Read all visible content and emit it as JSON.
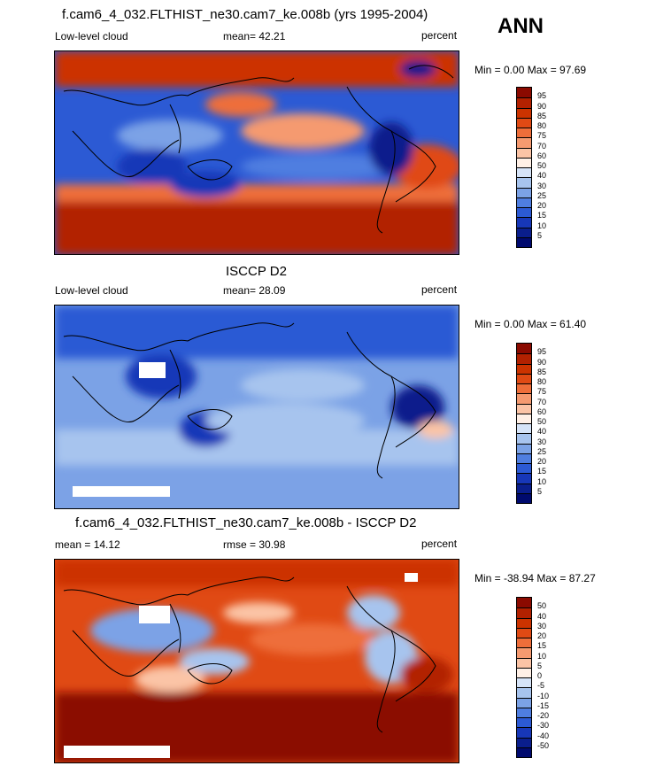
{
  "season": "ANN",
  "panels": [
    {
      "title": "f.cam6_4_032.FLTHIST_ne30.cam7_ke.008b (yrs 1995-2004)",
      "left_label": "Low-level cloud",
      "center_label": "mean=  42.21",
      "right_label": "percent",
      "minmax": "Min =   0.00 Max =  97.69",
      "levels": [
        "95",
        "90",
        "85",
        "80",
        "75",
        "70",
        "60",
        "50",
        "40",
        "30",
        "25",
        "20",
        "15",
        "10",
        "5"
      ]
    },
    {
      "title": "ISCCP D2",
      "left_label": "Low-level cloud",
      "center_label": "mean=  28.09",
      "right_label": "percent",
      "minmax": "Min =   0.00 Max =  61.40",
      "levels": [
        "95",
        "90",
        "85",
        "80",
        "75",
        "70",
        "60",
        "50",
        "40",
        "30",
        "25",
        "20",
        "15",
        "10",
        "5"
      ]
    },
    {
      "title": "f.cam6_4_032.FLTHIST_ne30.cam7_ke.008b - ISCCP D2",
      "left_label": "mean =  14.12",
      "center_label": "rmse =  30.98",
      "right_label": "percent",
      "minmax": "Min = -38.94 Max =  87.27",
      "levels": [
        "50",
        "40",
        "30",
        "20",
        "15",
        "10",
        "5",
        "0",
        "-5",
        "-10",
        "-15",
        "-20",
        "-30",
        "-40",
        "-50"
      ]
    }
  ],
  "palette": [
    "#8b0a00",
    "#b22100",
    "#cc3300",
    "#e04a14",
    "#ee6e3a",
    "#f59a70",
    "#fbc4a6",
    "#fff0e6",
    "#d6e4f8",
    "#a7c4ee",
    "#7ba2e6",
    "#4f7ee0",
    "#2c5ad4",
    "#1737b8",
    "#0a1e8c",
    "#000a6e"
  ]
}
